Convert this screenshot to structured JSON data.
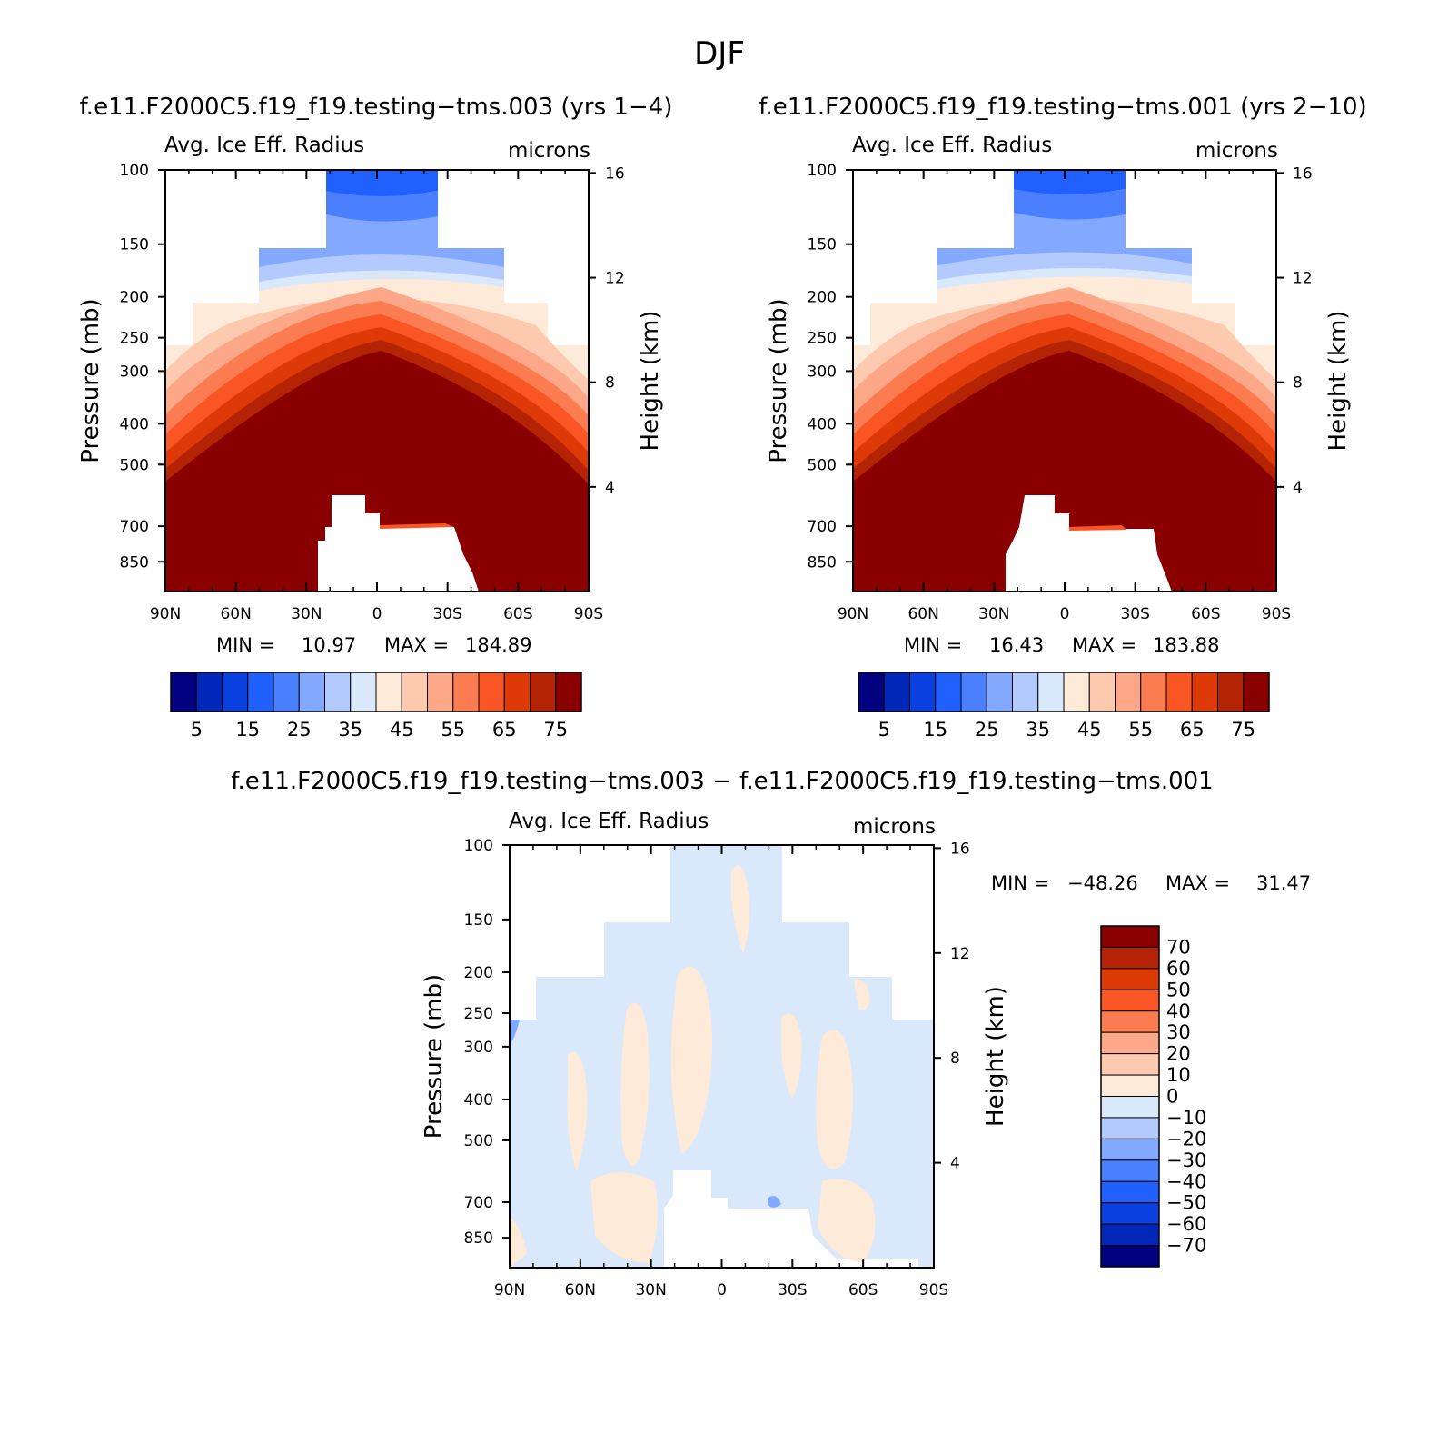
{
  "page": {
    "main_title": "DJF",
    "diff_title": "f.e11.F2000C5.f19_f19.testing−tms.003 − f.e11.F2000C5.f19_f19.testing−tms.001"
  },
  "colors": {
    "seq": [
      "#000080",
      "#0028b8",
      "#0a3fe0",
      "#2060ff",
      "#4a80ff",
      "#82a8ff",
      "#b2cafd",
      "#d9e8fb",
      "#feead8",
      "#fdcab0",
      "#fca888",
      "#fb7c50",
      "#f95525",
      "#de3a08",
      "#b52305",
      "#8a0000"
    ],
    "diff": [
      "#000080",
      "#0028b8",
      "#0a3fe0",
      "#2060ff",
      "#4a80ff",
      "#82a8ff",
      "#b2cafd",
      "#d9e8fb",
      "#feead8",
      "#fdcab0",
      "#fca888",
      "#fb7c50",
      "#f95525",
      "#de3a08",
      "#b52305",
      "#8a0000"
    ]
  },
  "chart_data": [
    {
      "type": "heatmap",
      "title": "f.e11.F2000C5.f19_f19.testing−tms.003 (yrs 1−4)",
      "left_label": "Avg. Ice Eff. Radius",
      "right_label": "microns",
      "ylabel": "Pressure (mb)",
      "y2label": "Height (km)",
      "x_ticks": [
        "90N",
        "60N",
        "30N",
        "0",
        "30S",
        "60S",
        "90S"
      ],
      "y_ticks": [
        100,
        150,
        200,
        250,
        300,
        400,
        500,
        700,
        850
      ],
      "y2_ticks": [
        16,
        12,
        8,
        4
      ],
      "stats": {
        "min_label": "MIN =",
        "min": "10.97",
        "max_label": "MAX =",
        "max": "184.89"
      },
      "colorbar_labels": [
        "5",
        "15",
        "25",
        "35",
        "45",
        "55",
        "65",
        "75"
      ],
      "colorbar_levels": [
        0,
        5,
        10,
        15,
        20,
        25,
        30,
        35,
        40,
        45,
        50,
        55,
        60,
        65,
        70,
        75,
        80
      ]
    },
    {
      "type": "heatmap",
      "title": "f.e11.F2000C5.f19_f19.testing−tms.001 (yrs 2−10)",
      "left_label": "Avg. Ice Eff. Radius",
      "right_label": "microns",
      "ylabel": "Pressure (mb)",
      "y2label": "Height (km)",
      "x_ticks": [
        "90N",
        "60N",
        "30N",
        "0",
        "30S",
        "60S",
        "90S"
      ],
      "y_ticks": [
        100,
        150,
        200,
        250,
        300,
        400,
        500,
        700,
        850
      ],
      "y2_ticks": [
        16,
        12,
        8,
        4
      ],
      "stats": {
        "min_label": "MIN =",
        "min": "16.43",
        "max_label": "MAX =",
        "max": "183.88"
      },
      "colorbar_labels": [
        "5",
        "15",
        "25",
        "35",
        "45",
        "55",
        "65",
        "75"
      ],
      "colorbar_levels": [
        0,
        5,
        10,
        15,
        20,
        25,
        30,
        35,
        40,
        45,
        50,
        55,
        60,
        65,
        70,
        75,
        80
      ]
    },
    {
      "type": "heatmap",
      "title": "f.e11.F2000C5.f19_f19.testing−tms.003 − f.e11.F2000C5.f19_f19.testing−tms.001",
      "left_label": "Avg. Ice Eff. Radius",
      "right_label": "microns",
      "ylabel": "Pressure (mb)",
      "y2label": "Height (km)",
      "x_ticks": [
        "90N",
        "60N",
        "30N",
        "0",
        "30S",
        "60S",
        "90S"
      ],
      "y_ticks": [
        100,
        150,
        200,
        250,
        300,
        400,
        500,
        700,
        850
      ],
      "y2_ticks": [
        16,
        12,
        8,
        4
      ],
      "stats": {
        "min_label": "MIN =",
        "min": "−48.26",
        "max_label": "MAX =",
        "max": "31.47"
      },
      "colorbar_labels": [
        "70",
        "60",
        "50",
        "40",
        "30",
        "20",
        "10",
        "0",
        "−10",
        "−20",
        "−30",
        "−40",
        "−50",
        "−60",
        "−70"
      ],
      "colorbar_levels": [
        80,
        70,
        60,
        50,
        40,
        30,
        20,
        10,
        0,
        -10,
        -20,
        -30,
        -40,
        -50,
        -60,
        -70,
        -80
      ]
    }
  ]
}
